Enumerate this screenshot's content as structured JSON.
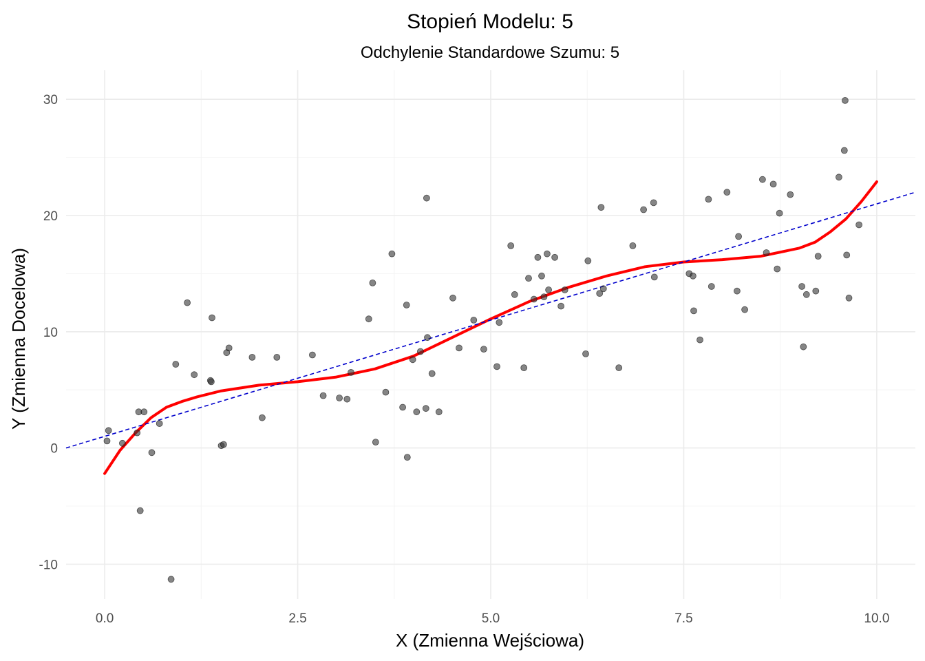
{
  "chart_data": {
    "type": "scatter",
    "title": "Stopień Modelu: 5",
    "subtitle": "Odchylenie Standardowe Szumu: 5",
    "xlabel": "X (Zmienna Wejściowa)",
    "ylabel": "Y (Zmienna Docelowa)",
    "xlim": [
      -0.5,
      10.5
    ],
    "ylim": [
      -13,
      32.5
    ],
    "x_ticks": [
      0.0,
      2.5,
      5.0,
      7.5,
      10.0
    ],
    "x_tick_labels": [
      "0.0",
      "2.5",
      "5.0",
      "7.5",
      "10.0"
    ],
    "y_ticks": [
      -10,
      0,
      10,
      20,
      30
    ],
    "y_tick_labels": [
      "-10",
      "0",
      "10",
      "20",
      "30"
    ],
    "grid": true,
    "colors": {
      "points": "#333333",
      "poly_fit": "#ff0000",
      "linear_fit": "#0000cc"
    },
    "points": [
      [
        0.03,
        0.6
      ],
      [
        0.05,
        1.5
      ],
      [
        0.23,
        0.4
      ],
      [
        0.42,
        1.3
      ],
      [
        0.44,
        3.1
      ],
      [
        0.46,
        -5.4
      ],
      [
        0.51,
        3.1
      ],
      [
        0.61,
        -0.4
      ],
      [
        0.71,
        2.1
      ],
      [
        0.86,
        -11.3
      ],
      [
        0.92,
        7.2
      ],
      [
        1.07,
        12.5
      ],
      [
        1.16,
        6.3
      ],
      [
        1.37,
        5.8
      ],
      [
        1.38,
        5.7
      ],
      [
        1.39,
        11.2
      ],
      [
        1.51,
        0.2
      ],
      [
        1.54,
        0.3
      ],
      [
        1.58,
        8.2
      ],
      [
        1.61,
        8.6
      ],
      [
        1.91,
        7.8
      ],
      [
        2.04,
        2.6
      ],
      [
        2.23,
        7.8
      ],
      [
        2.69,
        8.0
      ],
      [
        2.83,
        4.5
      ],
      [
        3.04,
        4.3
      ],
      [
        3.14,
        4.2
      ],
      [
        3.19,
        6.5
      ],
      [
        3.42,
        11.1
      ],
      [
        3.47,
        14.2
      ],
      [
        3.51,
        0.5
      ],
      [
        3.64,
        4.8
      ],
      [
        3.72,
        16.7
      ],
      [
        3.86,
        3.5
      ],
      [
        3.91,
        12.3
      ],
      [
        3.92,
        -0.8
      ],
      [
        3.99,
        7.6
      ],
      [
        4.04,
        3.1
      ],
      [
        4.09,
        8.3
      ],
      [
        4.16,
        3.4
      ],
      [
        4.17,
        21.5
      ],
      [
        4.18,
        9.5
      ],
      [
        4.24,
        6.4
      ],
      [
        4.33,
        3.1
      ],
      [
        4.51,
        12.9
      ],
      [
        4.59,
        8.6
      ],
      [
        4.78,
        11.0
      ],
      [
        4.91,
        8.5
      ],
      [
        5.08,
        7.0
      ],
      [
        5.11,
        10.8
      ],
      [
        5.26,
        17.4
      ],
      [
        5.31,
        13.2
      ],
      [
        5.43,
        6.9
      ],
      [
        5.49,
        14.6
      ],
      [
        5.56,
        12.8
      ],
      [
        5.61,
        16.4
      ],
      [
        5.66,
        14.8
      ],
      [
        5.69,
        13.0
      ],
      [
        5.73,
        16.7
      ],
      [
        5.75,
        13.6
      ],
      [
        5.83,
        16.4
      ],
      [
        5.91,
        12.2
      ],
      [
        5.96,
        13.6
      ],
      [
        6.23,
        8.1
      ],
      [
        6.26,
        16.1
      ],
      [
        6.41,
        13.3
      ],
      [
        6.43,
        20.7
      ],
      [
        6.46,
        13.7
      ],
      [
        6.66,
        6.9
      ],
      [
        6.84,
        17.4
      ],
      [
        6.98,
        20.5
      ],
      [
        7.11,
        21.1
      ],
      [
        7.12,
        14.7
      ],
      [
        7.57,
        15.0
      ],
      [
        7.62,
        14.8
      ],
      [
        7.63,
        11.8
      ],
      [
        7.71,
        9.3
      ],
      [
        7.82,
        21.4
      ],
      [
        7.86,
        13.9
      ],
      [
        8.06,
        22.0
      ],
      [
        8.19,
        13.5
      ],
      [
        8.21,
        18.2
      ],
      [
        8.29,
        11.9
      ],
      [
        8.52,
        23.1
      ],
      [
        8.57,
        16.8
      ],
      [
        8.66,
        22.7
      ],
      [
        8.71,
        15.4
      ],
      [
        8.74,
        20.2
      ],
      [
        8.88,
        21.8
      ],
      [
        9.03,
        13.9
      ],
      [
        9.05,
        8.7
      ],
      [
        9.09,
        13.2
      ],
      [
        9.21,
        13.5
      ],
      [
        9.24,
        16.5
      ],
      [
        9.51,
        23.3
      ],
      [
        9.58,
        25.6
      ],
      [
        9.59,
        29.9
      ],
      [
        9.61,
        16.6
      ],
      [
        9.64,
        12.9
      ],
      [
        9.77,
        19.2
      ]
    ],
    "series": [
      {
        "type": "line",
        "style": "solid",
        "x": [
          0.0,
          0.2,
          0.4,
          0.6,
          0.8,
          1.0,
          1.2,
          1.5,
          2.0,
          2.5,
          3.0,
          3.5,
          4.0,
          4.5,
          5.0,
          5.5,
          6.0,
          6.5,
          7.0,
          7.5,
          8.0,
          8.5,
          9.0,
          9.2,
          9.4,
          9.6,
          9.8,
          10.0
        ],
        "y": [
          -2.2,
          -0.2,
          1.3,
          2.6,
          3.5,
          4.0,
          4.4,
          4.9,
          5.4,
          5.7,
          6.1,
          6.8,
          7.9,
          9.5,
          11.1,
          12.6,
          13.8,
          14.8,
          15.6,
          16.0,
          16.2,
          16.5,
          17.2,
          17.7,
          18.6,
          19.7,
          21.2,
          22.9
        ]
      },
      {
        "type": "line",
        "style": "dashed",
        "x": [
          -0.5,
          10.5
        ],
        "y": [
          0.0,
          22.0
        ]
      }
    ]
  }
}
